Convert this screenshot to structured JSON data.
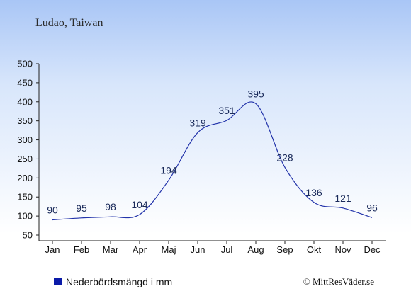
{
  "chart_data": {
    "type": "line",
    "title": "Ludao, Taiwan",
    "categories": [
      "Jan",
      "Feb",
      "Mar",
      "Apr",
      "Maj",
      "Jun",
      "Jul",
      "Aug",
      "Sep",
      "Okt",
      "Nov",
      "Dec"
    ],
    "series": [
      {
        "name": "Nederbördsmängd i mm",
        "values": [
          90,
          95,
          98,
          104,
          194,
          319,
          351,
          395,
          228,
          136,
          121,
          96
        ]
      }
    ],
    "yticks": [
      50,
      100,
      150,
      200,
      250,
      300,
      350,
      400,
      450,
      500
    ],
    "ylim": [
      50,
      500
    ],
    "grid": false,
    "legend_position": "bottom-left",
    "line_color": "#2233aa",
    "legend_marker_color": "#0a1aa8",
    "credit": "© MittResVäder.se"
  }
}
